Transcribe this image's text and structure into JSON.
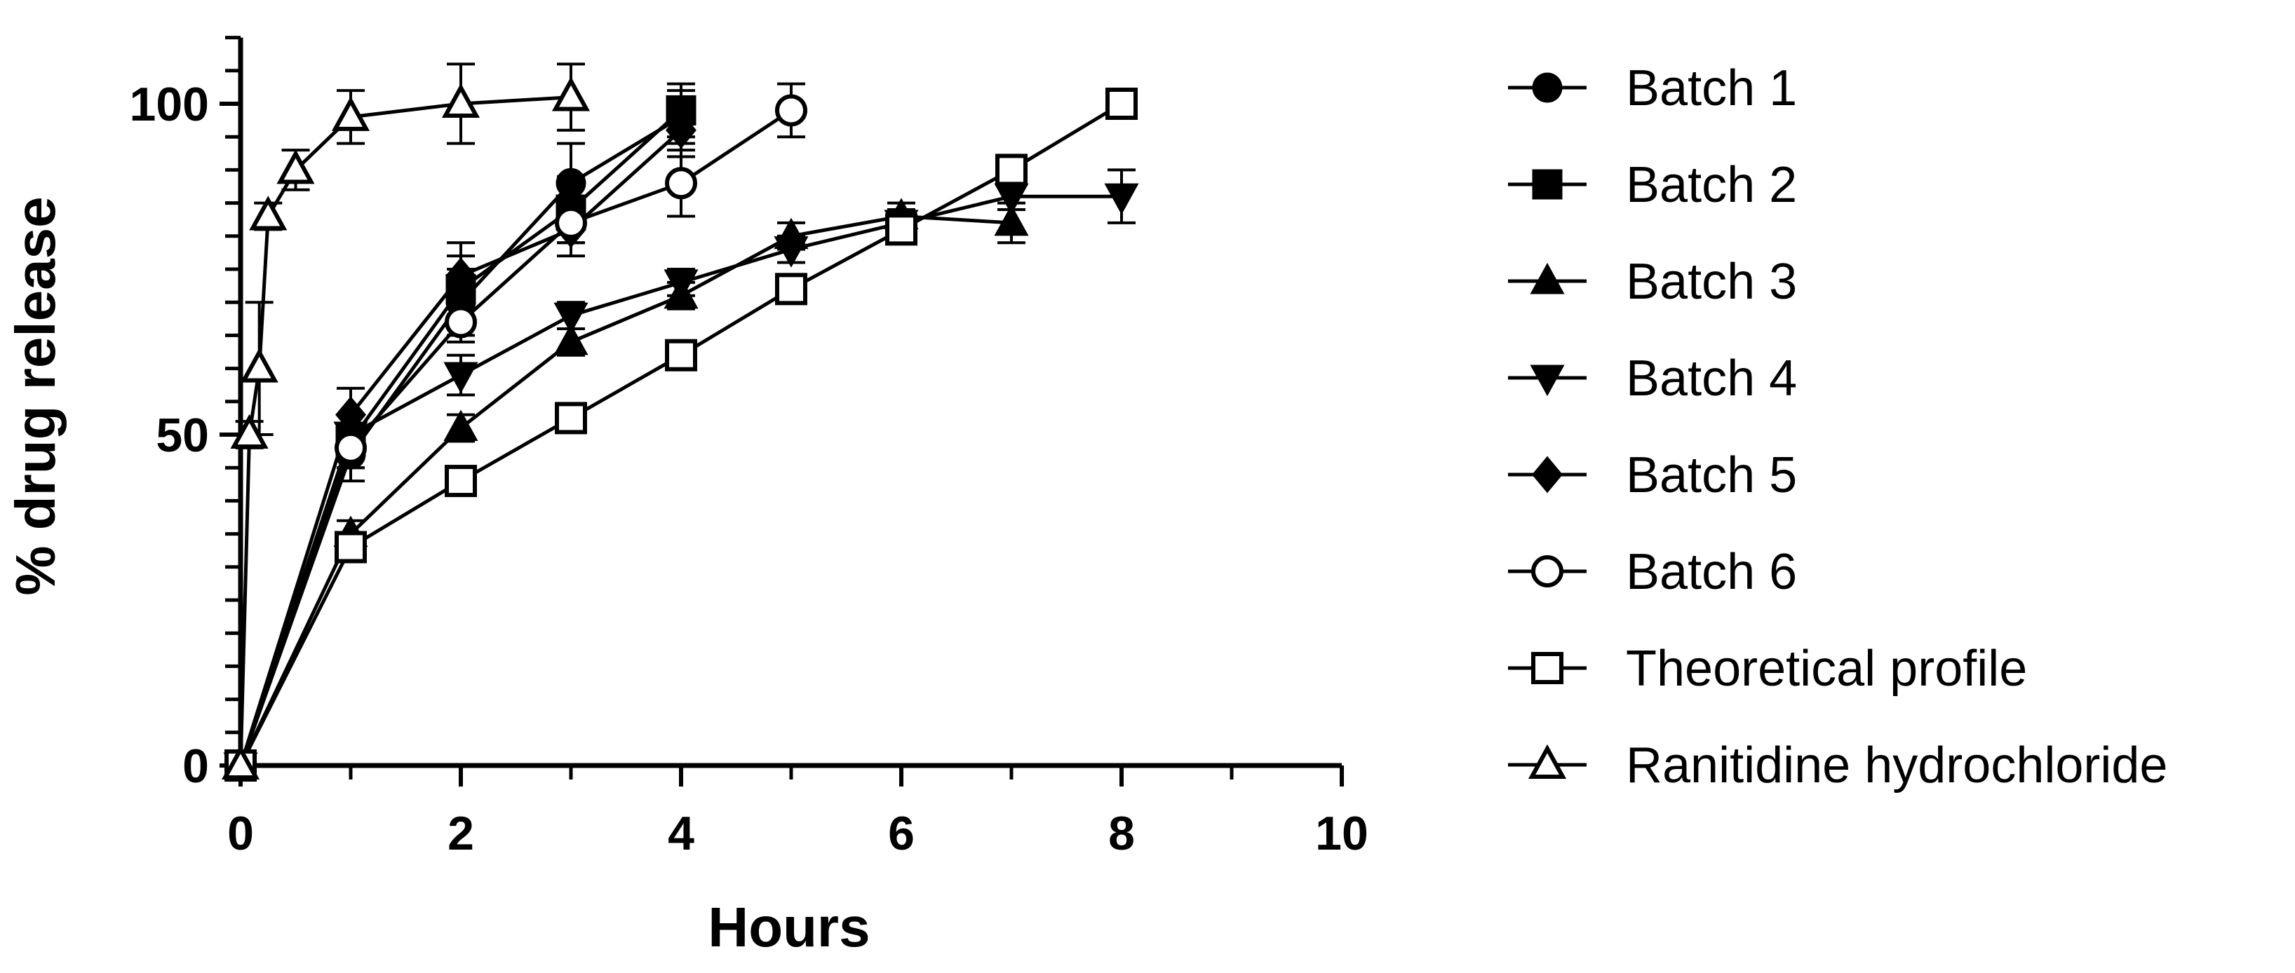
{
  "chart_data": {
    "type": "line",
    "xlabel": "Hours",
    "ylabel": "% drug release",
    "xlim": [
      0,
      10
    ],
    "ylim": [
      0,
      110
    ],
    "xticks": [
      0,
      2,
      4,
      6,
      8,
      10
    ],
    "yticks": [
      0,
      50,
      100
    ],
    "grid": false,
    "legend_position": "right",
    "series": [
      {
        "name": "Batch 1",
        "marker": "circle-filled",
        "x": [
          0,
          1,
          2,
          3,
          4
        ],
        "y": [
          0,
          47,
          70,
          88,
          98
        ],
        "err": [
          0,
          4,
          5,
          6,
          4
        ]
      },
      {
        "name": "Batch 2",
        "marker": "square-filled",
        "x": [
          0,
          1,
          2,
          3,
          4
        ],
        "y": [
          0,
          49,
          72,
          84,
          99
        ],
        "err": [
          0,
          4,
          5,
          5,
          4
        ]
      },
      {
        "name": "Batch 3",
        "marker": "triangle-up-filled",
        "x": [
          0,
          1,
          2,
          3,
          4,
          5,
          6,
          7
        ],
        "y": [
          0,
          35,
          51,
          64,
          71,
          80,
          83,
          82
        ],
        "err": [
          0,
          2,
          2,
          2,
          2,
          2,
          2,
          3
        ]
      },
      {
        "name": "Batch 4",
        "marker": "triangle-down-filled",
        "x": [
          0,
          1,
          2,
          3,
          4,
          5,
          6,
          7,
          8
        ],
        "y": [
          0,
          50,
          59,
          68,
          73,
          78,
          82,
          86,
          86
        ],
        "err": [
          0,
          3,
          3,
          2,
          2,
          2,
          2,
          2,
          4
        ]
      },
      {
        "name": "Batch 5",
        "marker": "diamond-filled",
        "x": [
          0,
          1,
          2,
          3,
          4
        ],
        "y": [
          0,
          53,
          74,
          81,
          96
        ],
        "err": [
          0,
          4,
          5,
          4,
          4
        ]
      },
      {
        "name": "Batch 6",
        "marker": "circle-open",
        "x": [
          0,
          1,
          2,
          3,
          4,
          5
        ],
        "y": [
          0,
          48,
          67,
          82,
          88,
          99
        ],
        "err": [
          0,
          3,
          3,
          3,
          5,
          4
        ]
      },
      {
        "name": "Theoretical profile",
        "marker": "square-open",
        "x": [
          0,
          1,
          2,
          3,
          4,
          5,
          6,
          7,
          8
        ],
        "y": [
          0,
          33,
          43,
          52.5,
          62,
          72,
          81,
          90,
          100
        ],
        "err": [
          0,
          0,
          0,
          0,
          0,
          0,
          0,
          0,
          0
        ]
      },
      {
        "name": "Ranitidine hydrochloride",
        "marker": "triangle-up-open",
        "x": [
          0,
          0.08,
          0.17,
          0.25,
          0.5,
          1,
          2,
          3
        ],
        "y": [
          0,
          50,
          60,
          83,
          90,
          98,
          100,
          101
        ],
        "err": [
          0,
          2,
          10,
          2,
          3,
          4,
          6,
          5
        ]
      }
    ]
  }
}
